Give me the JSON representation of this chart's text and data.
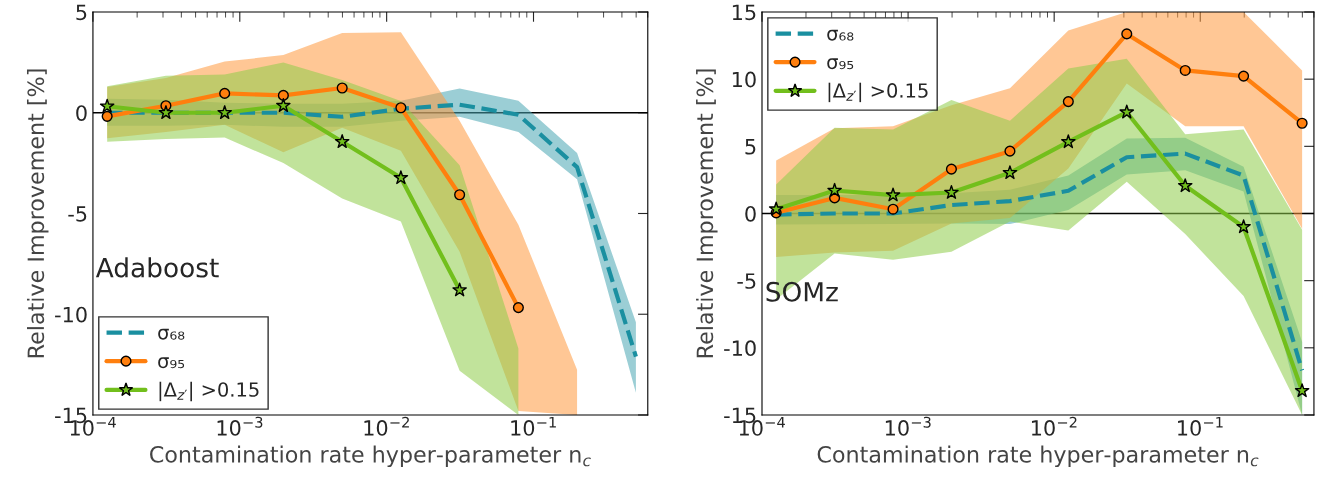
{
  "chart_data": [
    {
      "type": "line",
      "xlabel": "Contamination rate hyper-parameter n$_{c}$",
      "ylabel": "Relative Improvement [%]",
      "annotations": [
        "Adaboost"
      ],
      "log": "x",
      "xlim": [
        0.0001,
        0.6
      ],
      "xticks": [
        {
          "value": 0.0001,
          "label": "10$^{−4}$"
        },
        {
          "value": 0.001,
          "label": "10$^{−3}$"
        },
        {
          "value": 0.01,
          "label": "10$^{−2}$"
        },
        {
          "value": 0.1,
          "label": "10$^{−1}$"
        }
      ],
      "ylim": [
        -15,
        5
      ],
      "yticks": [
        -15,
        -10,
        -5,
        0,
        5
      ],
      "grid": false,
      "legend": "bottom left",
      "ref_lines": [
        {
          "axis": "y",
          "value": 0,
          "color": "#000000"
        }
      ],
      "x": [
        0.000125,
        0.000314,
        0.000789,
        0.00198,
        0.00498,
        0.0125,
        0.0314,
        0.0789,
        0.198,
        0.498
      ],
      "series": [
        {
          "name": "σ₆₈",
          "color": "#1a8fa0",
          "line_style": "dashed",
          "marker": "none",
          "values": [
            0.0,
            0.0,
            0.0,
            0.0,
            -0.2,
            0.2,
            0.4,
            -0.1,
            -2.7,
            -12.1
          ],
          "lower": [
            -0.65,
            -0.65,
            -0.6,
            -0.7,
            -0.7,
            -0.4,
            -0.2,
            -0.95,
            -3.3,
            -13.9
          ],
          "upper": [
            0.7,
            0.65,
            0.5,
            0.45,
            0.45,
            0.6,
            1.2,
            0.6,
            -2.0,
            -10.4
          ]
        },
        {
          "name": "σ₉₅",
          "color": "#ff7f0e",
          "line_style": "solid",
          "marker": "circle",
          "values": [
            -0.18,
            0.35,
            0.96,
            0.86,
            1.23,
            0.25,
            -4.07,
            -9.67,
            null,
            null
          ],
          "lower": [
            -1.26,
            -0.95,
            -0.6,
            -1.96,
            -0.74,
            -1.88,
            -6.9,
            -14.8,
            -15,
            null
          ],
          "upper": [
            1.28,
            1.72,
            2.54,
            2.86,
            3.96,
            4.0,
            -0.4,
            -5.56,
            -12.75,
            null
          ]
        },
        {
          "name": "|Δ$_{z′}$| >0.15",
          "color": "#72bf1c",
          "line_style": "solid",
          "marker": "star",
          "values": [
            0.32,
            0.0,
            0.0,
            0.35,
            -1.44,
            -3.23,
            -8.8,
            null,
            null,
            null
          ],
          "lower": [
            -1.44,
            -1.3,
            -1.23,
            -2.5,
            -4.25,
            -5.4,
            -12.8,
            -15,
            null,
            null
          ],
          "upper": [
            1.32,
            1.84,
            1.9,
            2.5,
            1.63,
            0.58,
            -2.6,
            -11.7,
            null,
            null
          ]
        }
      ]
    },
    {
      "type": "line",
      "xlabel": "Contamination rate hyper-parameter n$_{c}$",
      "ylabel": "Relative Improvement [%]",
      "annotations": [
        "SOMz"
      ],
      "log": "x",
      "xlim": [
        0.0001,
        0.6
      ],
      "xticks": [
        {
          "value": 0.0001,
          "label": "10$^{−4}$"
        },
        {
          "value": 0.001,
          "label": "10$^{−3}$"
        },
        {
          "value": 0.01,
          "label": "10$^{−2}$"
        },
        {
          "value": 0.1,
          "label": "10$^{−1}$"
        }
      ],
      "ylim": [
        -15,
        15
      ],
      "yticks": [
        -15,
        -10,
        -5,
        0,
        5,
        10,
        15
      ],
      "grid": false,
      "legend": "top left",
      "ref_lines": [
        {
          "axis": "y",
          "value": 0,
          "color": "#000000"
        }
      ],
      "x": [
        0.000125,
        0.000314,
        0.000789,
        0.00198,
        0.00498,
        0.0125,
        0.0314,
        0.0789,
        0.198,
        0.498
      ],
      "series": [
        {
          "name": "σ₆₈",
          "color": "#1a8fa0",
          "line_style": "dashed",
          "marker": "none",
          "values": [
            -0.08,
            0.0,
            0.0,
            0.63,
            0.92,
            1.69,
            4.19,
            4.46,
            2.82,
            -11.68
          ],
          "lower": [
            -0.82,
            -0.8,
            -0.79,
            -0.74,
            -0.79,
            0.26,
            2.9,
            3.22,
            1.63,
            -15
          ],
          "upper": [
            1.37,
            1.37,
            1.37,
            1.5,
            1.77,
            2.82,
            5.59,
            5.64,
            3.48,
            -9.57
          ]
        },
        {
          "name": "σ₉₅",
          "color": "#ff7f0e",
          "line_style": "solid",
          "marker": "circle",
          "values": [
            0.05,
            1.16,
            0.32,
            3.3,
            4.64,
            8.33,
            13.37,
            10.65,
            10.23,
            6.72
          ],
          "lower": [
            -3.24,
            -2.9,
            -2.77,
            -0.74,
            -0.34,
            3.35,
            9.67,
            6.5,
            6.5,
            -1.13
          ],
          "upper": [
            3.95,
            6.35,
            6.5,
            8.05,
            9.33,
            13.63,
            15,
            15,
            15,
            10.65
          ]
        },
        {
          "name": "|Δ$_{z′}$| >0.15",
          "color": "#72bf1c",
          "line_style": "solid",
          "marker": "star",
          "values": [
            0.32,
            1.71,
            1.37,
            1.56,
            3.03,
            5.33,
            7.54,
            2.06,
            -1.0,
            -13.2
          ],
          "lower": [
            -6.4,
            -2.98,
            -3.45,
            -2.85,
            -0.6,
            -1.27,
            2.37,
            -1.53,
            -6.14,
            -15
          ],
          "upper": [
            2.16,
            6.38,
            6.25,
            8.44,
            6.9,
            10.8,
            11.52,
            5.9,
            6.25,
            -1.21
          ]
        }
      ]
    }
  ]
}
